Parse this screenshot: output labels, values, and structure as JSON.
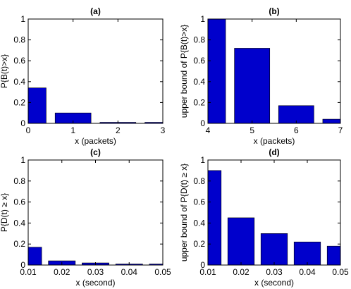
{
  "chart_data": [
    {
      "type": "bar",
      "title": "(a)",
      "xlabel": "x (packets)",
      "ylabel": "P{B(t)>x}",
      "xlim": [
        0,
        3
      ],
      "ylim": [
        0,
        1
      ],
      "xticks": [
        "0",
        "1",
        "2",
        "3"
      ],
      "yticks": [
        "0",
        "0.2",
        "0.4",
        "0.6",
        "0.8",
        "1"
      ],
      "x": [
        0,
        1,
        2,
        3
      ],
      "values": [
        0.34,
        0.1,
        0.01,
        0.01
      ],
      "bar_color": "#0000cc",
      "grid": false
    },
    {
      "type": "bar",
      "title": "(b)",
      "xlabel": "x (packets)",
      "ylabel": "upper bound of P{B(t)>x}",
      "xlim": [
        4,
        7
      ],
      "ylim": [
        0,
        1
      ],
      "xticks": [
        "4",
        "5",
        "6",
        "7"
      ],
      "yticks": [
        "0",
        "0.2",
        "0.4",
        "0.6",
        "0.8",
        "1"
      ],
      "x": [
        4,
        5,
        6,
        7
      ],
      "values": [
        1.0,
        0.72,
        0.17,
        0.04
      ],
      "bar_color": "#0000cc",
      "grid": false
    },
    {
      "type": "bar",
      "title": "(c)",
      "xlabel": "x (second)",
      "ylabel": "P{D(t) ≥ x}",
      "xlim": [
        0.01,
        0.05
      ],
      "ylim": [
        0,
        1
      ],
      "xticks": [
        "0.01",
        "0.02",
        "0.03",
        "0.04",
        "0.05"
      ],
      "yticks": [
        "0",
        "0.2",
        "0.4",
        "0.6",
        "0.8",
        "1"
      ],
      "x": [
        0.01,
        0.02,
        0.03,
        0.04,
        0.05
      ],
      "values": [
        0.17,
        0.04,
        0.02,
        0.01,
        0.01
      ],
      "bar_color": "#0000cc",
      "grid": false
    },
    {
      "type": "bar",
      "title": "(d)",
      "xlabel": "x (second)",
      "ylabel": "upper bound of P{D(t) ≥ x}",
      "xlim": [
        0.01,
        0.05
      ],
      "ylim": [
        0,
        1
      ],
      "xticks": [
        "0.01",
        "0.02",
        "0.03",
        "0.04",
        "0.05"
      ],
      "yticks": [
        "0",
        "0.2",
        "0.4",
        "0.6",
        "0.8",
        "1"
      ],
      "x": [
        0.01,
        0.02,
        0.03,
        0.04,
        0.05
      ],
      "values": [
        0.9,
        0.45,
        0.3,
        0.22,
        0.18
      ],
      "bar_color": "#0000cc",
      "grid": false
    }
  ]
}
